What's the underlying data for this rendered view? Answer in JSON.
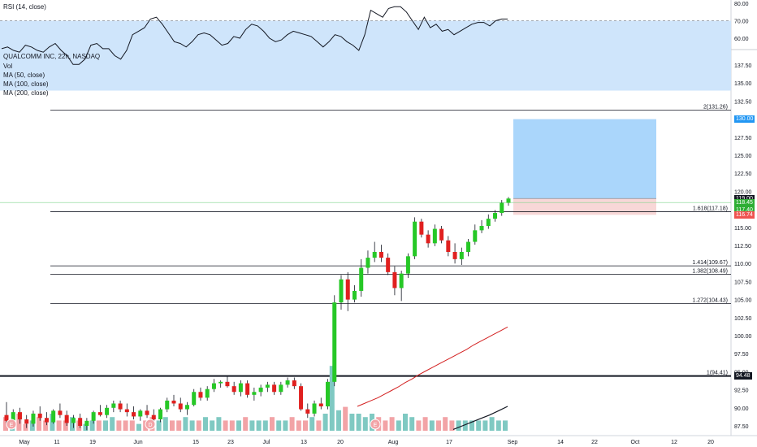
{
  "rsi": {
    "title": "RSI (14, close)",
    "ticks": [
      "80.00",
      "70.00",
      "60.00"
    ],
    "tick_values": [
      80,
      70,
      60
    ],
    "band": [
      30,
      70
    ],
    "values": [
      54,
      55,
      53,
      52,
      56,
      55,
      53,
      52,
      55,
      57,
      53,
      50,
      45,
      45,
      48,
      56,
      57,
      54,
      54,
      50,
      48,
      53,
      62,
      64,
      66,
      71,
      72,
      68,
      63,
      58,
      57,
      55,
      58,
      62,
      63,
      62,
      59,
      56,
      57,
      61,
      60,
      65,
      68,
      67,
      64,
      60,
      58,
      59,
      62,
      64,
      63,
      62,
      61,
      58,
      55,
      58,
      62,
      61,
      58,
      56,
      53,
      62,
      76,
      74,
      72,
      77,
      78,
      78,
      75,
      70,
      65,
      72,
      66,
      68,
      64,
      65,
      62,
      64,
      66,
      68,
      69,
      69,
      67,
      70,
      71,
      71
    ]
  },
  "legend": {
    "symbol": "QUALCOMM INC, 22h, NASDAQ",
    "items": [
      "Vol",
      "MA (50, close)",
      "MA (100, close)",
      "MA (200, close)"
    ]
  },
  "price_axis": {
    "ticks": [
      "137.50",
      "135.00",
      "132.50",
      "130.00",
      "127.50",
      "125.00",
      "122.50",
      "120.00",
      "117.50",
      "115.00",
      "112.50",
      "110.00",
      "107.50",
      "105.00",
      "102.50",
      "100.00",
      "97.50",
      "95.00",
      "92.50",
      "90.00",
      "87.50"
    ],
    "tick_values": [
      137.5,
      135,
      132.5,
      130,
      127.5,
      125,
      122.5,
      120,
      117.5,
      115,
      112.5,
      110,
      107.5,
      105,
      102.5,
      100,
      97.5,
      95,
      92.5,
      90,
      87.5
    ],
    "tags": [
      {
        "text": "130.00",
        "value": 130.0,
        "color": "#2196f3"
      },
      {
        "text": "119.00",
        "value": 119.0,
        "color": "#131722"
      },
      {
        "text": "118.45",
        "value": 118.45,
        "color": "#2eae34"
      },
      {
        "text": "117.40",
        "value": 117.4,
        "color": "#2eae34"
      },
      {
        "text": "116.74",
        "value": 116.74,
        "color": "#ef5350"
      },
      {
        "text": "94.48",
        "value": 94.48,
        "color": "#131722"
      }
    ]
  },
  "fib_levels": [
    {
      "label": "2(131.26)",
      "value": 131.26
    },
    {
      "label": "1.618(117.18)",
      "value": 117.18
    },
    {
      "label": "1.414(109.67)",
      "value": 109.67
    },
    {
      "label": "1.382(108.49)",
      "value": 108.49
    },
    {
      "label": "1.272(104.43)",
      "value": 104.43
    },
    {
      "label": "1(94.41)",
      "value": 94.41
    }
  ],
  "position": {
    "target": 130.0,
    "entry": 119.0,
    "stop": 116.74
  },
  "time_axis": [
    "May",
    "11",
    "19",
    "Jun",
    "15",
    "23",
    "Jul",
    "13",
    "20",
    "Aug",
    "17",
    "Sep",
    "14",
    "22",
    "Oct",
    "12",
    "20"
  ],
  "event_markers": [
    "E",
    "D",
    "E"
  ],
  "chart_data": {
    "type": "candlestick",
    "title": "QUALCOMM INC, 22h, NASDAQ",
    "ylim": [
      86.5,
      140.0
    ],
    "candles": [
      {
        "o": 89.0,
        "h": 90.8,
        "l": 87.6,
        "c": 88.2
      },
      {
        "o": 88.2,
        "h": 89.8,
        "l": 87.5,
        "c": 89.4
      },
      {
        "o": 89.4,
        "h": 90.0,
        "l": 87.8,
        "c": 88.4
      },
      {
        "o": 88.4,
        "h": 89.0,
        "l": 87.2,
        "c": 87.8
      },
      {
        "o": 87.8,
        "h": 89.6,
        "l": 87.4,
        "c": 89.2
      },
      {
        "o": 89.2,
        "h": 90.2,
        "l": 88.2,
        "c": 88.6
      },
      {
        "o": 88.6,
        "h": 89.4,
        "l": 87.6,
        "c": 88.0
      },
      {
        "o": 88.0,
        "h": 89.8,
        "l": 87.8,
        "c": 89.6
      },
      {
        "o": 89.6,
        "h": 90.6,
        "l": 88.6,
        "c": 89.0
      },
      {
        "o": 89.0,
        "h": 89.6,
        "l": 87.5,
        "c": 87.9
      },
      {
        "o": 87.9,
        "h": 89.0,
        "l": 87.2,
        "c": 88.6
      },
      {
        "o": 88.6,
        "h": 89.2,
        "l": 87.2,
        "c": 87.5
      },
      {
        "o": 87.5,
        "h": 88.6,
        "l": 86.9,
        "c": 88.2
      },
      {
        "o": 88.2,
        "h": 89.6,
        "l": 87.8,
        "c": 89.4
      },
      {
        "o": 89.4,
        "h": 90.4,
        "l": 88.8,
        "c": 89.0
      },
      {
        "o": 89.0,
        "h": 90.4,
        "l": 88.6,
        "c": 90.0
      },
      {
        "o": 90.0,
        "h": 91.0,
        "l": 89.4,
        "c": 90.6
      },
      {
        "o": 90.6,
        "h": 91.0,
        "l": 89.4,
        "c": 89.8
      },
      {
        "o": 89.8,
        "h": 90.6,
        "l": 88.8,
        "c": 89.4
      },
      {
        "o": 89.4,
        "h": 90.2,
        "l": 88.4,
        "c": 88.8
      },
      {
        "o": 88.8,
        "h": 89.8,
        "l": 88.2,
        "c": 89.6
      },
      {
        "o": 89.6,
        "h": 90.4,
        "l": 88.6,
        "c": 89.0
      },
      {
        "o": 89.0,
        "h": 89.8,
        "l": 88.0,
        "c": 88.4
      },
      {
        "o": 88.4,
        "h": 90.0,
        "l": 88.0,
        "c": 89.8
      },
      {
        "o": 89.8,
        "h": 91.4,
        "l": 89.4,
        "c": 91.0
      },
      {
        "o": 91.0,
        "h": 91.8,
        "l": 90.2,
        "c": 90.6
      },
      {
        "o": 90.6,
        "h": 91.4,
        "l": 89.4,
        "c": 89.8
      },
      {
        "o": 89.8,
        "h": 90.8,
        "l": 89.0,
        "c": 90.4
      },
      {
        "o": 90.4,
        "h": 92.6,
        "l": 90.2,
        "c": 92.2
      },
      {
        "o": 92.2,
        "h": 92.8,
        "l": 91.0,
        "c": 91.4
      },
      {
        "o": 91.4,
        "h": 93.0,
        "l": 91.0,
        "c": 92.6
      },
      {
        "o": 92.6,
        "h": 94.0,
        "l": 92.2,
        "c": 93.4
      },
      {
        "o": 93.4,
        "h": 93.8,
        "l": 92.8,
        "c": 93.6
      },
      {
        "o": 93.6,
        "h": 94.4,
        "l": 92.8,
        "c": 93.0
      },
      {
        "o": 93.0,
        "h": 93.6,
        "l": 91.8,
        "c": 92.2
      },
      {
        "o": 92.2,
        "h": 93.8,
        "l": 91.6,
        "c": 93.4
      },
      {
        "o": 93.4,
        "h": 93.8,
        "l": 91.4,
        "c": 91.8
      },
      {
        "o": 91.8,
        "h": 92.8,
        "l": 91.0,
        "c": 92.2
      },
      {
        "o": 92.2,
        "h": 93.2,
        "l": 91.6,
        "c": 92.8
      },
      {
        "o": 92.8,
        "h": 93.6,
        "l": 92.2,
        "c": 93.2
      },
      {
        "o": 93.2,
        "h": 93.6,
        "l": 91.8,
        "c": 92.2
      },
      {
        "o": 92.2,
        "h": 93.6,
        "l": 91.8,
        "c": 93.2
      },
      {
        "o": 93.2,
        "h": 94.2,
        "l": 92.8,
        "c": 93.8
      },
      {
        "o": 93.8,
        "h": 94.2,
        "l": 92.6,
        "c": 93.0
      },
      {
        "o": 93.0,
        "h": 93.4,
        "l": 89.6,
        "c": 89.8
      },
      {
        "o": 89.8,
        "h": 90.6,
        "l": 88.6,
        "c": 89.2
      },
      {
        "o": 89.2,
        "h": 91.0,
        "l": 88.8,
        "c": 90.6
      },
      {
        "o": 90.6,
        "h": 91.4,
        "l": 89.8,
        "c": 90.2
      },
      {
        "o": 90.2,
        "h": 94.0,
        "l": 89.8,
        "c": 93.6
      },
      {
        "o": 93.6,
        "h": 105.6,
        "l": 93.0,
        "c": 104.6
      },
      {
        "o": 104.6,
        "h": 108.4,
        "l": 103.6,
        "c": 107.8
      },
      {
        "o": 107.8,
        "h": 108.8,
        "l": 103.4,
        "c": 105.0
      },
      {
        "o": 105.0,
        "h": 107.0,
        "l": 104.6,
        "c": 106.2
      },
      {
        "o": 106.2,
        "h": 110.6,
        "l": 105.4,
        "c": 109.4
      },
      {
        "o": 109.4,
        "h": 111.8,
        "l": 108.6,
        "c": 110.8
      },
      {
        "o": 110.8,
        "h": 113.0,
        "l": 110.2,
        "c": 111.6
      },
      {
        "o": 111.6,
        "h": 112.6,
        "l": 110.2,
        "c": 110.8
      },
      {
        "o": 110.8,
        "h": 111.4,
        "l": 108.4,
        "c": 108.8
      },
      {
        "o": 108.8,
        "h": 109.6,
        "l": 105.6,
        "c": 106.6
      },
      {
        "o": 106.6,
        "h": 109.0,
        "l": 104.8,
        "c": 108.6
      },
      {
        "o": 108.6,
        "h": 111.4,
        "l": 108.0,
        "c": 111.0
      },
      {
        "o": 111.0,
        "h": 116.4,
        "l": 110.6,
        "c": 115.8
      },
      {
        "o": 115.8,
        "h": 116.2,
        "l": 113.6,
        "c": 114.0
      },
      {
        "o": 114.0,
        "h": 114.6,
        "l": 112.2,
        "c": 112.8
      },
      {
        "o": 112.8,
        "h": 115.4,
        "l": 112.4,
        "c": 114.8
      },
      {
        "o": 114.8,
        "h": 115.2,
        "l": 112.8,
        "c": 113.2
      },
      {
        "o": 113.2,
        "h": 113.8,
        "l": 111.0,
        "c": 111.6
      },
      {
        "o": 111.6,
        "h": 112.8,
        "l": 110.0,
        "c": 110.6
      },
      {
        "o": 110.6,
        "h": 112.2,
        "l": 109.8,
        "c": 111.6
      },
      {
        "o": 111.6,
        "h": 113.4,
        "l": 111.0,
        "c": 113.0
      },
      {
        "o": 113.0,
        "h": 115.4,
        "l": 112.6,
        "c": 114.6
      },
      {
        "o": 114.6,
        "h": 116.0,
        "l": 114.2,
        "c": 115.2
      },
      {
        "o": 115.2,
        "h": 116.8,
        "l": 114.8,
        "c": 116.2
      },
      {
        "o": 116.2,
        "h": 117.4,
        "l": 115.8,
        "c": 117.0
      },
      {
        "o": 117.0,
        "h": 118.8,
        "l": 116.6,
        "c": 118.4
      },
      {
        "o": 118.4,
        "h": 119.2,
        "l": 118.0,
        "c": 119.0
      }
    ],
    "volume": [
      4,
      3,
      5,
      2,
      3,
      4,
      3,
      5,
      3,
      3,
      4,
      3,
      2,
      3,
      3,
      3,
      4,
      3,
      3,
      3,
      2,
      3,
      4,
      3,
      4,
      3,
      3,
      4,
      3,
      3,
      4,
      3,
      4,
      3,
      3,
      3,
      4,
      3,
      3,
      3,
      4,
      3,
      3,
      4,
      3,
      3,
      4,
      3,
      5,
      19,
      6,
      7,
      5,
      5,
      4,
      5,
      4,
      3,
      4,
      3,
      5,
      4,
      3,
      4,
      3,
      3,
      4,
      3,
      3,
      3,
      3,
      3,
      3,
      4,
      3,
      3
    ],
    "ma_red": [
      90.2,
      90.6,
      91.0,
      91.4,
      91.9,
      92.4,
      92.9,
      93.5,
      94.0,
      94.6,
      95.1,
      95.6,
      96.1,
      96.6,
      97.1,
      97.6,
      98.1,
      98.7,
      99.2,
      99.7,
      100.2,
      100.7,
      101.2
    ],
    "ma_black": [
      87.0,
      87.5,
      88.0,
      88.5,
      89.0,
      89.6,
      90.2
    ]
  }
}
